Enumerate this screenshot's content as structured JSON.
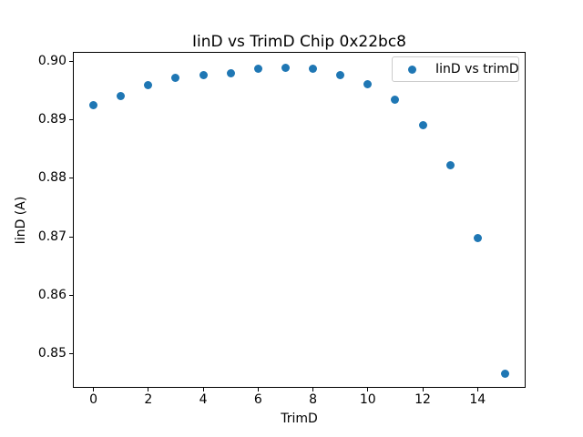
{
  "figure": {
    "background": "#ffffff"
  },
  "chart_data": {
    "type": "scatter",
    "title": "IinD vs TrimD Chip 0x22bc8",
    "xlabel": "TrimD",
    "ylabel": "IinD (A)",
    "legend": {
      "label": "IinD vs trimD",
      "position": "upper right"
    },
    "marker_color": "#1f77b4",
    "grid": false,
    "x": [
      0,
      1,
      2,
      3,
      4,
      5,
      6,
      7,
      8,
      9,
      10,
      11,
      12,
      13,
      14,
      15
    ],
    "y": [
      0.8925,
      0.8941,
      0.896,
      0.8971,
      0.8976,
      0.898,
      0.8987,
      0.8989,
      0.8987,
      0.8977,
      0.8961,
      0.8935,
      0.8891,
      0.8823,
      0.8698,
      0.8466
    ],
    "xlim": [
      -0.75,
      15.75
    ],
    "ylim": [
      0.8442,
      0.9016
    ],
    "xticks": [
      0,
      2,
      4,
      6,
      8,
      10,
      12,
      14
    ],
    "xtick_labels": [
      "0",
      "2",
      "4",
      "6",
      "8",
      "10",
      "12",
      "14"
    ],
    "yticks": [
      0.85,
      0.86,
      0.87,
      0.88,
      0.89,
      0.9
    ],
    "ytick_labels": [
      "0.85",
      "0.86",
      "0.87",
      "0.88",
      "0.89",
      "0.90"
    ]
  }
}
